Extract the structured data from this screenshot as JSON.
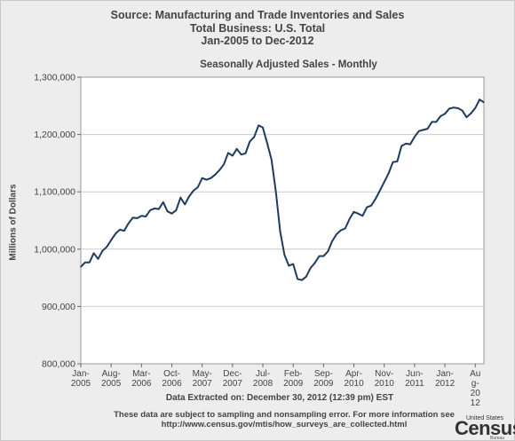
{
  "header": {
    "line1": "Source: Manufacturing and Trade Inventories and Sales",
    "line2": "Total Business: U.S. Total",
    "line3": "Jan-2005 to Dec-2012"
  },
  "footer": {
    "extracted": "Data Extracted on: December 30, 2012 (12:39 pm) EST",
    "note1": "These data are subject to sampling and nonsampling error. For more information see",
    "note2": "http://www.census.gov/mtis/how_surveys_are_collected.html"
  },
  "logo": {
    "small": "United States",
    "big": "Census",
    "bureau": "Bureau"
  },
  "chart_data": {
    "type": "line",
    "title": "Seasonally Adjusted Sales - Monthly",
    "ylabel": "Millions of Dollars",
    "ylim": [
      800000,
      1300000
    ],
    "yticks": [
      800000,
      900000,
      1000000,
      1100000,
      1200000,
      1300000
    ],
    "ytick_labels": [
      "800,000",
      "900,000",
      "1,000,000",
      "1,100,000",
      "1,200,000",
      "1,300,000"
    ],
    "xticks": [
      {
        "idx": 0,
        "lines": [
          "Jan-",
          "2005"
        ]
      },
      {
        "idx": 7,
        "lines": [
          "Aug-",
          "2005"
        ]
      },
      {
        "idx": 14,
        "lines": [
          "Mar-",
          "2006"
        ]
      },
      {
        "idx": 21,
        "lines": [
          "Oct-",
          "2006"
        ]
      },
      {
        "idx": 28,
        "lines": [
          "May-",
          "2007"
        ]
      },
      {
        "idx": 35,
        "lines": [
          "Dec-",
          "2007"
        ]
      },
      {
        "idx": 42,
        "lines": [
          "Jul-",
          "2008"
        ]
      },
      {
        "idx": 49,
        "lines": [
          "Feb-",
          "2009"
        ]
      },
      {
        "idx": 56,
        "lines": [
          "Sep-",
          "2009"
        ]
      },
      {
        "idx": 63,
        "lines": [
          "Apr-",
          "2010"
        ]
      },
      {
        "idx": 70,
        "lines": [
          "Nov-",
          "2010"
        ]
      },
      {
        "idx": 77,
        "lines": [
          "Jun-",
          "2011"
        ]
      },
      {
        "idx": 84,
        "lines": [
          "Jan-",
          "2012"
        ]
      },
      {
        "idx": 91,
        "lines": [
          "Au",
          "g-",
          "20",
          "12"
        ]
      }
    ],
    "grid": true,
    "legend": "none",
    "line_color": "#1f3a5f",
    "series": [
      {
        "start": "2005-01",
        "values": [
          969000,
          977000,
          977000,
          993000,
          983000,
          997000,
          1004000,
          1016000,
          1027000,
          1034000,
          1032000,
          1045000,
          1055000,
          1054000,
          1058000,
          1057000,
          1068000,
          1071000,
          1070000,
          1082000,
          1066000,
          1062000,
          1068000,
          1090000,
          1078000,
          1092000,
          1102000,
          1108000,
          1124000,
          1121000,
          1124000,
          1130000,
          1138000,
          1148000,
          1168000,
          1163000,
          1175000,
          1165000,
          1167000,
          1188000,
          1196000,
          1216000,
          1212000,
          1185000,
          1156000,
          1100000,
          1030000,
          990000,
          971000,
          974000,
          948000,
          946000,
          952000,
          967000,
          976000,
          988000,
          988000,
          996000,
          1014000,
          1026000,
          1033000,
          1036000,
          1053000,
          1065000,
          1062000,
          1058000,
          1073000,
          1076000,
          1088000,
          1102000,
          1117000,
          1132000,
          1152000,
          1153000,
          1180000,
          1184000,
          1183000,
          1196000,
          1206000,
          1208000,
          1210000,
          1222000,
          1222000,
          1232000,
          1236000,
          1245000,
          1247000,
          1246000,
          1242000,
          1230000,
          1237000,
          1246000,
          1261000,
          1256000
        ]
      }
    ]
  }
}
